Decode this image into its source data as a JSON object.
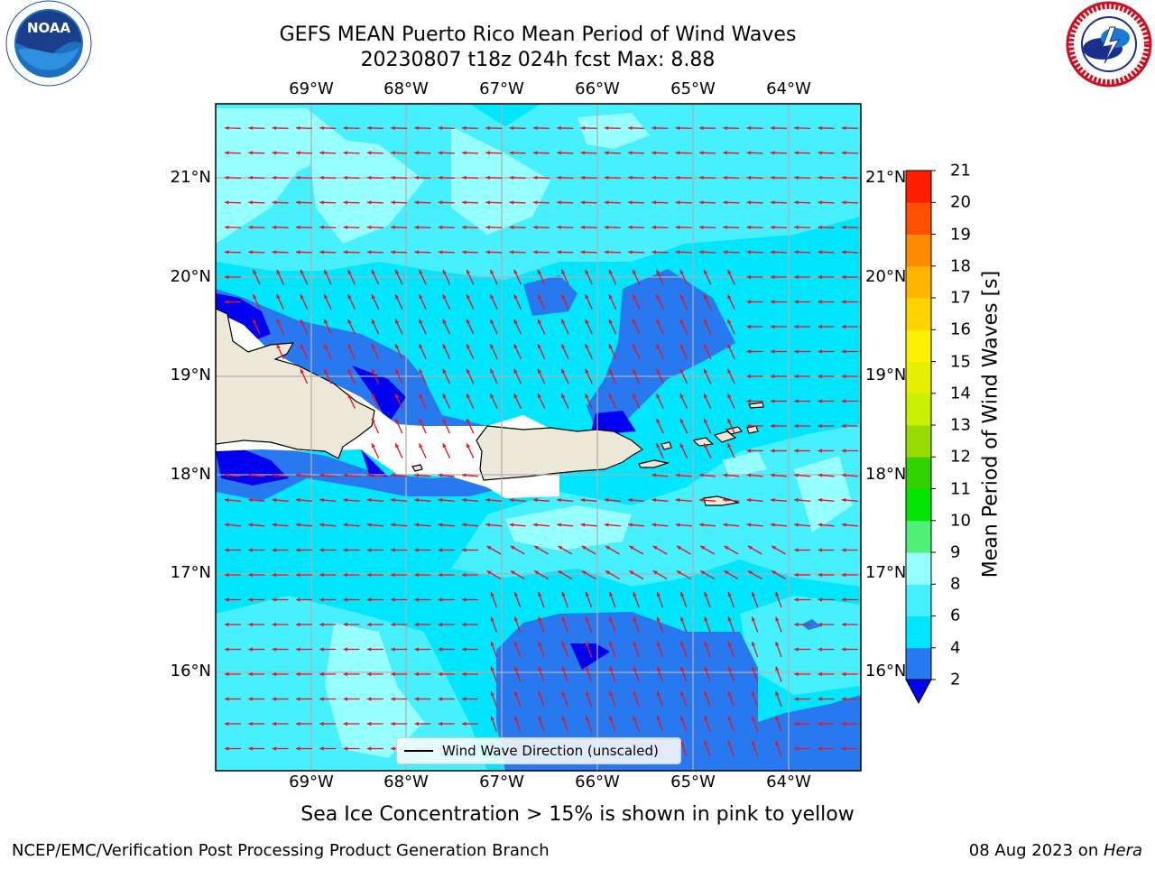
{
  "header": {
    "title_line1": "GEFS MEAN Puerto Rico Mean Period of Wind Waves",
    "title_line2": "20230807 t18z 024h fcst   Max: 8.88"
  },
  "logos": {
    "left": "noaa-logo",
    "right": "nws-logo"
  },
  "map": {
    "lon_labels": [
      "69°W",
      "68°W",
      "67°W",
      "66°W",
      "65°W",
      "64°W"
    ],
    "lat_labels": [
      "21°N",
      "20°N",
      "19°N",
      "18°N",
      "17°N",
      "16°N"
    ],
    "legend_label": "Wind Wave Direction (unscaled)",
    "arrow_color": "#e8141e",
    "land_color": "#ede9d9"
  },
  "colorbar": {
    "label": "Mean Period of Wind Waves [s]",
    "ticks": [
      "2",
      "4",
      "6",
      "8",
      "9",
      "10",
      "11",
      "12",
      "13",
      "14",
      "15",
      "16",
      "17",
      "18",
      "19",
      "20",
      "21"
    ],
    "colors": [
      "#2878f0",
      "#00e6ff",
      "#46f0ff",
      "#96ffff",
      "#50f078",
      "#00e600",
      "#32d200",
      "#96dc00",
      "#c8f000",
      "#e6f000",
      "#fff000",
      "#ffd200",
      "#ffb400",
      "#ff8c00",
      "#ff5000",
      "#ff1e00"
    ],
    "under_color": "#0000f0"
  },
  "footer": {
    "note": "Sea Ice Concentration > 15% is shown in pink to yellow",
    "credit": "NCEP/EMC/Verification Post Processing Product Generation Branch",
    "date": "08 Aug 2023 on ",
    "machine": "Hera"
  }
}
